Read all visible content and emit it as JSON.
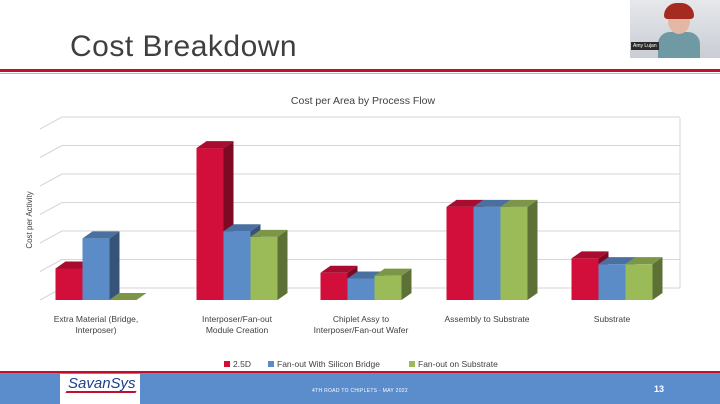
{
  "slide": {
    "title": "Cost Breakdown",
    "footer_text": "4TH ROAD TO CHIPLETS - MAY 2022",
    "page_number": "13",
    "logo_text": "SavanSys",
    "accent_color": "#c0102e",
    "footer_color": "#5b8ccc"
  },
  "video": {
    "name_tag": "Amy Lujan"
  },
  "chart_data": {
    "type": "bar",
    "title": "Cost per Area by Process Flow",
    "xlabel": "",
    "ylabel": "Cost per Activity",
    "y_tick_labels": "none",
    "grid": true,
    "legend_position": "bottom",
    "three_d": true,
    "categories": [
      [
        "Extra Material (Bridge,",
        "Interposer)"
      ],
      [
        "Interposer/Fan-out",
        "Module Creation"
      ],
      [
        "Chiplet Assy to",
        "Interposer/Fan-out Wafer"
      ],
      [
        "Assembly to Substrate"
      ],
      [
        "Substrate"
      ]
    ],
    "ylim": [
      0,
      6
    ],
    "series": [
      {
        "name": "2.5D",
        "color": "#d20f3a",
        "values": [
          1.1,
          5.3,
          0.95,
          3.25,
          1.45
        ]
      },
      {
        "name": "Fan-out With Silicon Bridge",
        "color": "#5b8cc8",
        "values": [
          2.15,
          2.4,
          0.75,
          3.25,
          1.25
        ]
      },
      {
        "name": "Fan-out on Substrate",
        "color": "#9bbb59",
        "values": [
          0.0,
          2.2,
          0.85,
          3.25,
          1.25
        ]
      }
    ]
  }
}
